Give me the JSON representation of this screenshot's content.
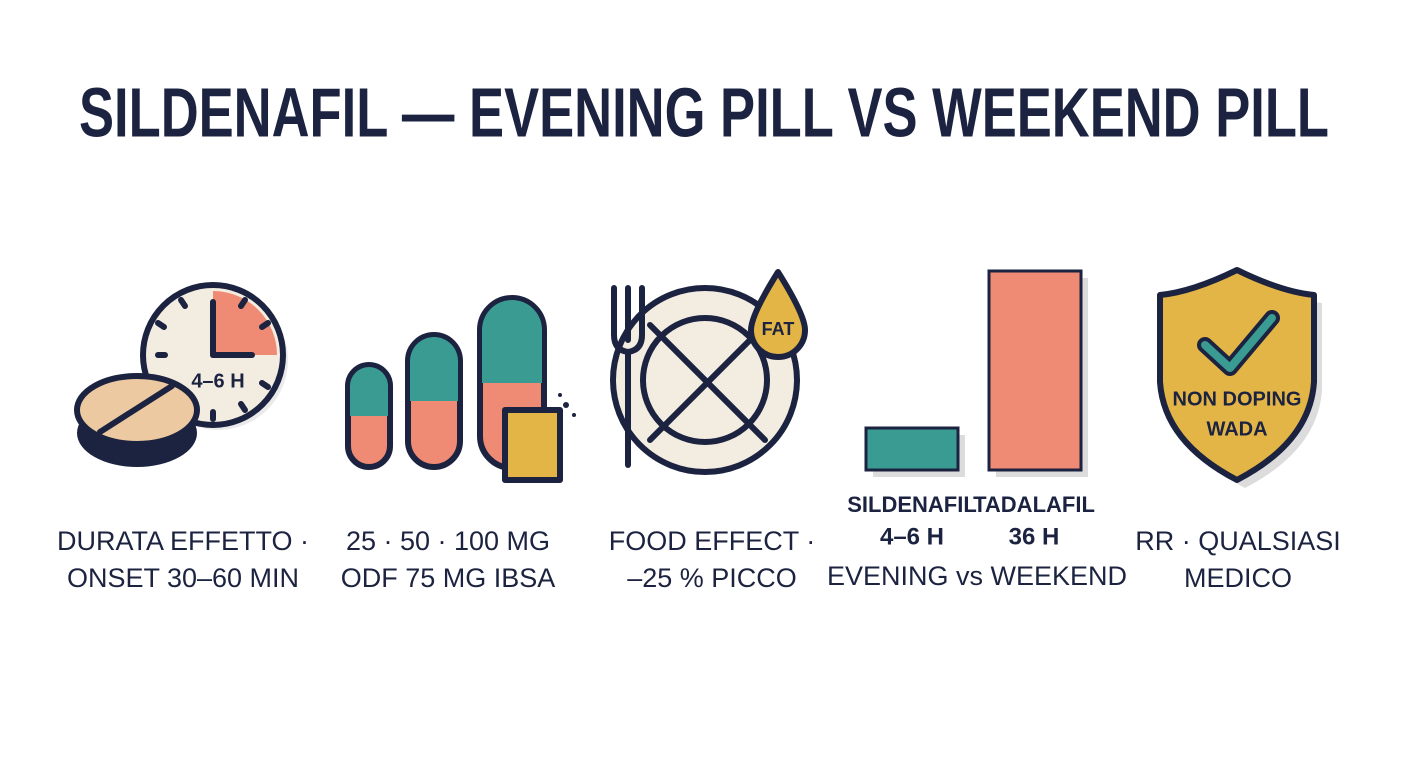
{
  "title": "SILDENAFIL — EVENING PILL VS WEEKEND PILL",
  "panels": [
    {
      "icon_labels": [
        "4–6 H"
      ],
      "caption": [
        "DURATA EFFETTO ·",
        "ONSET 30–60 MIN"
      ]
    },
    {
      "icon_labels": [],
      "caption": [
        "25 · 50 · 100 MG",
        "ODF 75 MG IBSA"
      ]
    },
    {
      "icon_labels": [
        "FAT"
      ],
      "caption": [
        "FOOD EFFECT ·",
        "–25 % PICCO"
      ]
    },
    {
      "icon_labels": [
        "SILDENAFIL",
        "4–6 H",
        "TADALAFIL",
        "36 H"
      ],
      "caption": [
        "EVENING vs WEEKEND"
      ]
    },
    {
      "icon_labels": [
        "NON DOPING",
        "WADA"
      ],
      "caption": [
        "RR · QUALSIASI",
        "MEDICO"
      ]
    }
  ]
}
